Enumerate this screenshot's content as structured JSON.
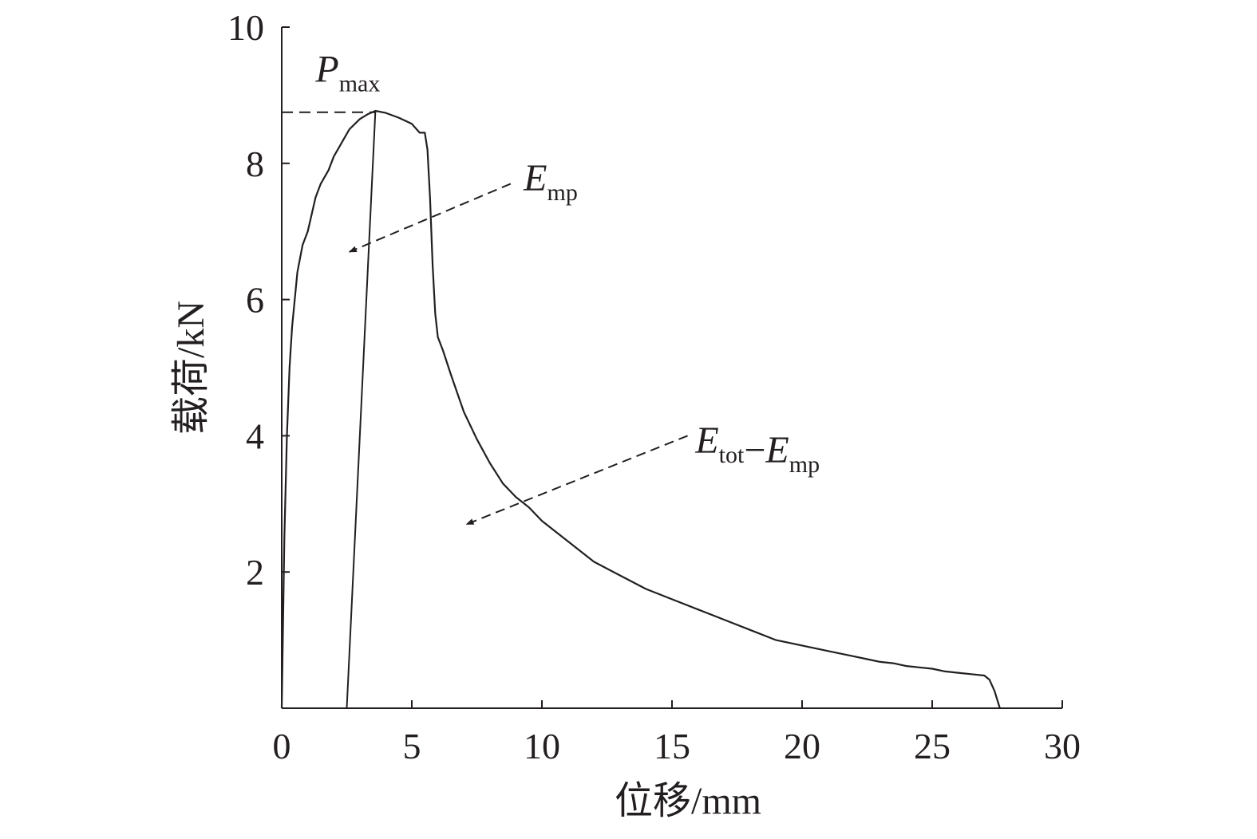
{
  "chart_data": {
    "type": "line",
    "title": "",
    "xlabel": "位移/mm",
    "ylabel": "载荷/kN",
    "xlim": [
      0,
      30
    ],
    "ylim": [
      0,
      10
    ],
    "xticks": [
      0,
      5,
      10,
      15,
      20,
      25,
      30
    ],
    "yticks": [
      2,
      4,
      6,
      8,
      10
    ],
    "grid": false,
    "colors": {
      "line": "#231f20",
      "text": "#231f20"
    },
    "series": [
      {
        "x": [
          0,
          0.1,
          0.2,
          0.3,
          0.4,
          0.6,
          0.8,
          1.0,
          1.3,
          1.5,
          1.8,
          2.0,
          2.3,
          2.6,
          3.0,
          3.3,
          3.6,
          4.0,
          4.5,
          5.0,
          5.3,
          5.5,
          5.6,
          5.7,
          5.8,
          5.9,
          6.0,
          6.2,
          6.5,
          7.0,
          7.5,
          8.0,
          8.5,
          9.0,
          9.5,
          10.0,
          11.0,
          12.0,
          13.0,
          14.0,
          15.0,
          16.0,
          17.0,
          18.0,
          19.0,
          20.0,
          21.0,
          21.5,
          22.0,
          22.5,
          23.0,
          23.5,
          24.0,
          24.5,
          25.0,
          25.5,
          26.0,
          26.5,
          27.0,
          27.2,
          27.4,
          27.6
        ],
        "y": [
          0,
          2.5,
          4.0,
          5.0,
          5.6,
          6.4,
          6.8,
          7.0,
          7.5,
          7.7,
          7.9,
          8.1,
          8.3,
          8.5,
          8.65,
          8.72,
          8.77,
          8.74,
          8.67,
          8.58,
          8.45,
          8.45,
          8.2,
          7.5,
          6.5,
          5.8,
          5.45,
          5.25,
          4.9,
          4.35,
          3.95,
          3.6,
          3.3,
          3.1,
          2.95,
          2.75,
          2.45,
          2.15,
          1.95,
          1.75,
          1.6,
          1.45,
          1.3,
          1.15,
          1.0,
          0.92,
          0.84,
          0.8,
          0.76,
          0.72,
          0.68,
          0.66,
          0.62,
          0.6,
          0.58,
          0.54,
          0.52,
          0.5,
          0.48,
          0.42,
          0.25,
          0.0
        ]
      }
    ],
    "reference_lines": [
      {
        "type": "unloading",
        "x": [
          2.5,
          3.6
        ],
        "y": [
          0,
          8.77
        ]
      },
      {
        "type": "dashed-horizontal",
        "x": [
          0,
          3.6
        ],
        "y": [
          8.75,
          8.75
        ]
      }
    ],
    "annotations": [
      {
        "parts": [
          {
            "t": "P",
            "style": "main"
          },
          {
            "t": "max",
            "style": "sub"
          }
        ],
        "at": [
          1.3,
          9.2
        ]
      },
      {
        "parts": [
          {
            "t": "E",
            "style": "main"
          },
          {
            "t": "mp",
            "style": "sub"
          }
        ],
        "at": [
          9.3,
          7.6
        ],
        "arrow_from": [
          8.8,
          7.7
        ],
        "arrow_to": [
          2.6,
          6.7
        ]
      },
      {
        "parts": [
          {
            "t": "E",
            "style": "main"
          },
          {
            "t": "tot",
            "style": "sub"
          },
          {
            "t": "−",
            "style": "op"
          },
          {
            "t": "E",
            "style": "main"
          },
          {
            "t": "mp",
            "style": "sub"
          }
        ],
        "at": [
          15.9,
          3.75
        ],
        "arrow_from": [
          15.6,
          4.0
        ],
        "arrow_to": [
          7.1,
          2.7
        ]
      }
    ]
  }
}
